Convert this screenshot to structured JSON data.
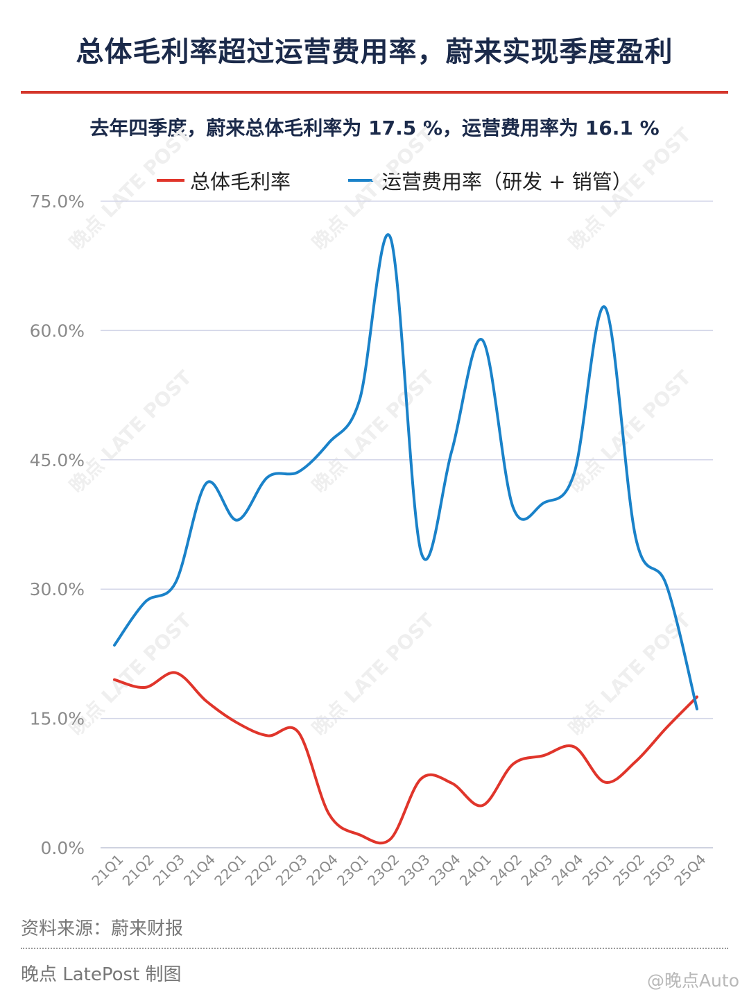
{
  "header": {
    "title": "总体毛利率超过运营费用率，蔚来实现季度盈利",
    "subtitle": "去年四季度，蔚来总体毛利率为 17.5 %，运营费用率为 16.1 %"
  },
  "footer": {
    "source": "资料来源：蔚来财报",
    "credit": "晚点 LatePost 制图",
    "weibo_tag": "@晚点Auto"
  },
  "watermark": {
    "text": "晚点 LATE POST"
  },
  "colors": {
    "gross_margin": "#e0352b",
    "opex_ratio": "#1a82c9",
    "title": "#1b2a4a",
    "rule": "#d4362b",
    "grid": "#d3d6e8"
  },
  "chart_data": {
    "type": "line",
    "categories": [
      "21Q1",
      "21Q2",
      "21Q3",
      "21Q4",
      "22Q1",
      "22Q2",
      "22Q3",
      "22Q4",
      "23Q1",
      "23Q2",
      "23Q3",
      "23Q4",
      "24Q1",
      "24Q2",
      "24Q3",
      "24Q4",
      "25Q1",
      "25Q2",
      "25Q3",
      "25Q4"
    ],
    "series": [
      {
        "name": "总体毛利率",
        "color": "#e0352b",
        "values": [
          19.5,
          18.6,
          20.3,
          17.0,
          14.5,
          13.0,
          13.4,
          3.9,
          1.5,
          1.0,
          8.0,
          7.5,
          4.9,
          9.7,
          10.7,
          11.7,
          7.6,
          10.0,
          13.9,
          17.5
        ]
      },
      {
        "name": "运营费用率（研发 + 销管）",
        "color": "#1a82c9",
        "values": [
          23.5,
          28.5,
          30.8,
          42.3,
          38.0,
          43.0,
          43.6,
          47.0,
          52.0,
          70.8,
          34.3,
          46.0,
          58.9,
          39.5,
          40.0,
          43.5,
          62.7,
          36.0,
          30.5,
          16.1
        ]
      }
    ],
    "ylim": [
      0,
      75
    ],
    "yticks": [
      0,
      15,
      30,
      45,
      60,
      75
    ],
    "ytick_labels": [
      "0.0%",
      "15.0%",
      "30.0%",
      "45.0%",
      "60.0%",
      "75.0%"
    ],
    "grid": true,
    "legend_position": "top",
    "xlabel": "",
    "ylabel": ""
  }
}
